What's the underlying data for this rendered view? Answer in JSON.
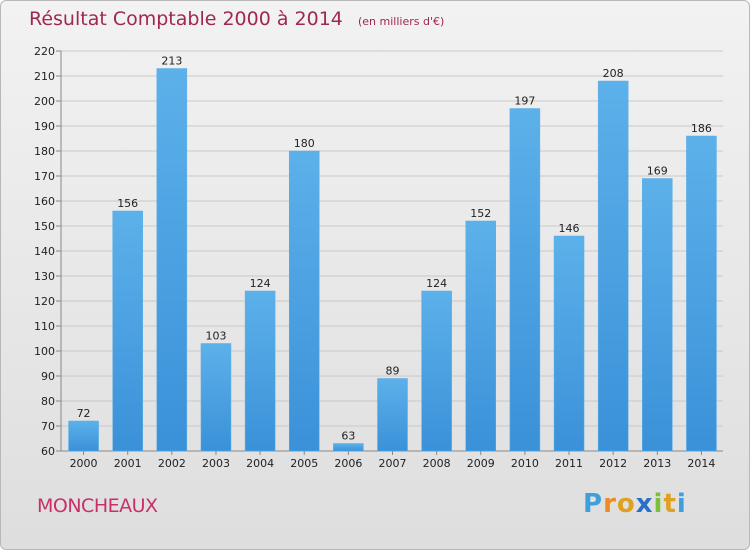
{
  "header": {
    "title": "Résultat Comptable 2000 à 2014",
    "subtitle": "(en milliers d'€)"
  },
  "footer": {
    "commune": "MONCHEAUX",
    "brand": {
      "letters": [
        "P",
        "r",
        "o",
        "x",
        "i",
        "t",
        "i"
      ],
      "colors": [
        "#3f9fdb",
        "#f08a24",
        "#e0a020",
        "#2a6fc9",
        "#7cbf3a",
        "#e0a020",
        "#3f9fdb"
      ]
    }
  },
  "colors": {
    "bar": "#3a91d8",
    "bar_light": "#5cb1ea",
    "grid": "#c9c9c9",
    "title": "#a0284f"
  },
  "chart_data": {
    "type": "bar",
    "categories": [
      "2000",
      "2001",
      "2002",
      "2003",
      "2004",
      "2005",
      "2006",
      "2007",
      "2008",
      "2009",
      "2010",
      "2011",
      "2012",
      "2013",
      "2014"
    ],
    "values": [
      72,
      156,
      213,
      103,
      124,
      180,
      63,
      89,
      124,
      152,
      197,
      146,
      208,
      169,
      186
    ],
    "title": "Résultat Comptable 2000 à 2014",
    "subtitle": "(en milliers d'€)",
    "ylim": [
      60,
      220
    ],
    "yticks": [
      60,
      70,
      80,
      90,
      100,
      110,
      120,
      130,
      140,
      150,
      160,
      170,
      180,
      190,
      200,
      210,
      220
    ],
    "grid": true,
    "data_labels": true
  }
}
